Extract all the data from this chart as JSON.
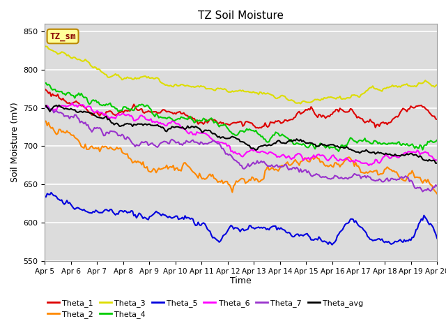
{
  "title": "TZ Soil Moisture",
  "xlabel": "Time",
  "ylabel": "Soil Moisture (mV)",
  "ylim": [
    550,
    860
  ],
  "xlim": [
    0,
    15
  ],
  "plot_bg": "#dcdcdc",
  "grid_color": "white",
  "series": {
    "Theta_1": {
      "color": "#dd0000"
    },
    "Theta_2": {
      "color": "#ff8800"
    },
    "Theta_3": {
      "color": "#dddd00"
    },
    "Theta_4": {
      "color": "#00cc00"
    },
    "Theta_5": {
      "color": "#0000dd"
    },
    "Theta_6": {
      "color": "#ff00ff"
    },
    "Theta_7": {
      "color": "#9933cc"
    },
    "Theta_avg": {
      "color": "#000000"
    }
  },
  "tick_labels": [
    "Apr 5",
    "Apr 6",
    "Apr 7",
    "Apr 8",
    "Apr 9",
    "Apr 10",
    "Apr 11",
    "Apr 12",
    "Apr 13",
    "Apr 14",
    "Apr 15",
    "Apr 16",
    "Apr 17",
    "Apr 18",
    "Apr 19",
    "Apr 20"
  ],
  "legend_label_box": "TZ_sm",
  "legend_box_facecolor": "#ffff99",
  "legend_box_edgecolor": "#bb8800",
  "legend_text_color": "#880000",
  "legend_row1": [
    "Theta_1",
    "Theta_2",
    "Theta_3",
    "Theta_4",
    "Theta_5",
    "Theta_6"
  ],
  "legend_row2": [
    "Theta_7",
    "Theta_avg"
  ]
}
